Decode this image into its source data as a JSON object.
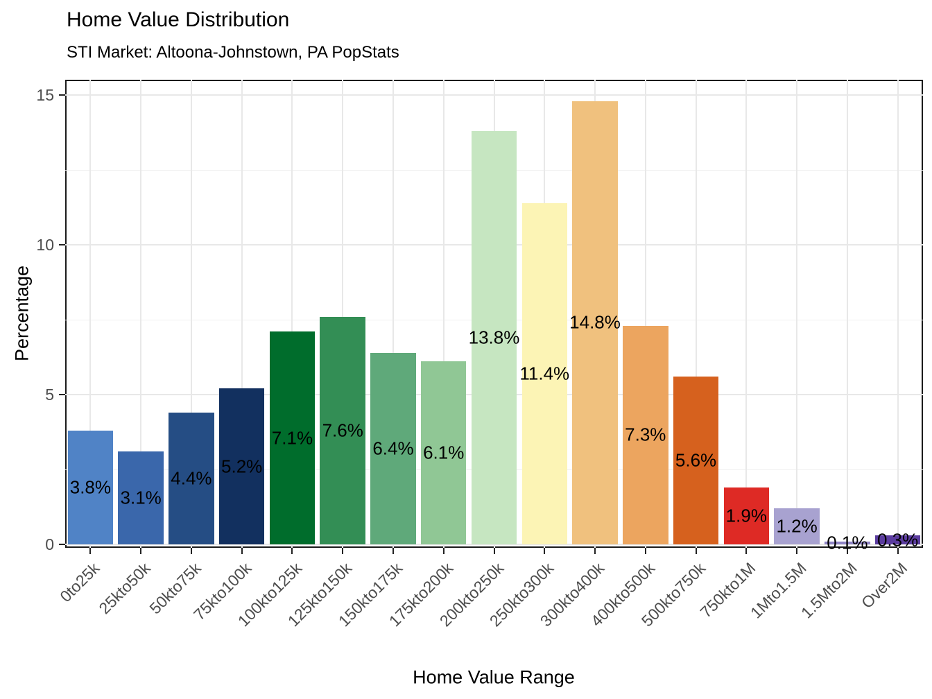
{
  "chart_data": {
    "type": "bar",
    "title": "Home Value Distribution",
    "subtitle": "STI Market: Altoona-Johnstown, PA PopStats",
    "xlabel": "Home Value Range",
    "ylabel": "Percentage",
    "categories": [
      "0to25k",
      "25kto50k",
      "50kto75k",
      "75kto100k",
      "100kto125k",
      "125kto150k",
      "150kto175k",
      "175kto200k",
      "200kto250k",
      "250kto300k",
      "300kto400k",
      "400kto500k",
      "500kto750k",
      "750kto1M",
      "1Mto1.5M",
      "1.5Mto2M",
      "Over2M"
    ],
    "values": [
      3.8,
      3.1,
      4.4,
      5.2,
      7.1,
      7.6,
      6.4,
      6.1,
      13.8,
      11.4,
      14.8,
      7.3,
      5.6,
      1.9,
      1.2,
      0.1,
      0.3
    ],
    "bar_labels": [
      "3.8%",
      "3.1%",
      "4.4%",
      "5.2%",
      "7.1%",
      "7.6%",
      "6.4%",
      "6.1%",
      "13.8%",
      "11.4%",
      "14.8%",
      "7.3%",
      "5.6%",
      "1.9%",
      "1.2%",
      "0.1%",
      "0.3%"
    ],
    "bar_colors": [
      "#5083C6",
      "#3A67AB",
      "#254D84",
      "#12305F",
      "#006D2C",
      "#338E55",
      "#5FA97A",
      "#90C795",
      "#C6E6C1",
      "#FCF4B5",
      "#F0C17E",
      "#ECA55F",
      "#D6611E",
      "#DE2A25",
      "#A8A2D0",
      "#8F84C5",
      "#5B3C9F"
    ],
    "ylim": [
      0,
      15
    ],
    "yticks": [
      0,
      5,
      10,
      15
    ],
    "ytick_labels": [
      "0",
      "5",
      "10",
      "15"
    ],
    "yticks_minor": [
      2.5,
      7.5,
      12.5
    ],
    "grid": "on",
    "legend": "none",
    "colors": {
      "bar_label_text": "#000000",
      "tick_label": "#4d4d4d",
      "grid_major": "#e8e8e8",
      "grid_minor": "#efefef",
      "panel_border": "#1a1a1a",
      "tick_mark": "#222222",
      "background": "#ffffff"
    }
  }
}
